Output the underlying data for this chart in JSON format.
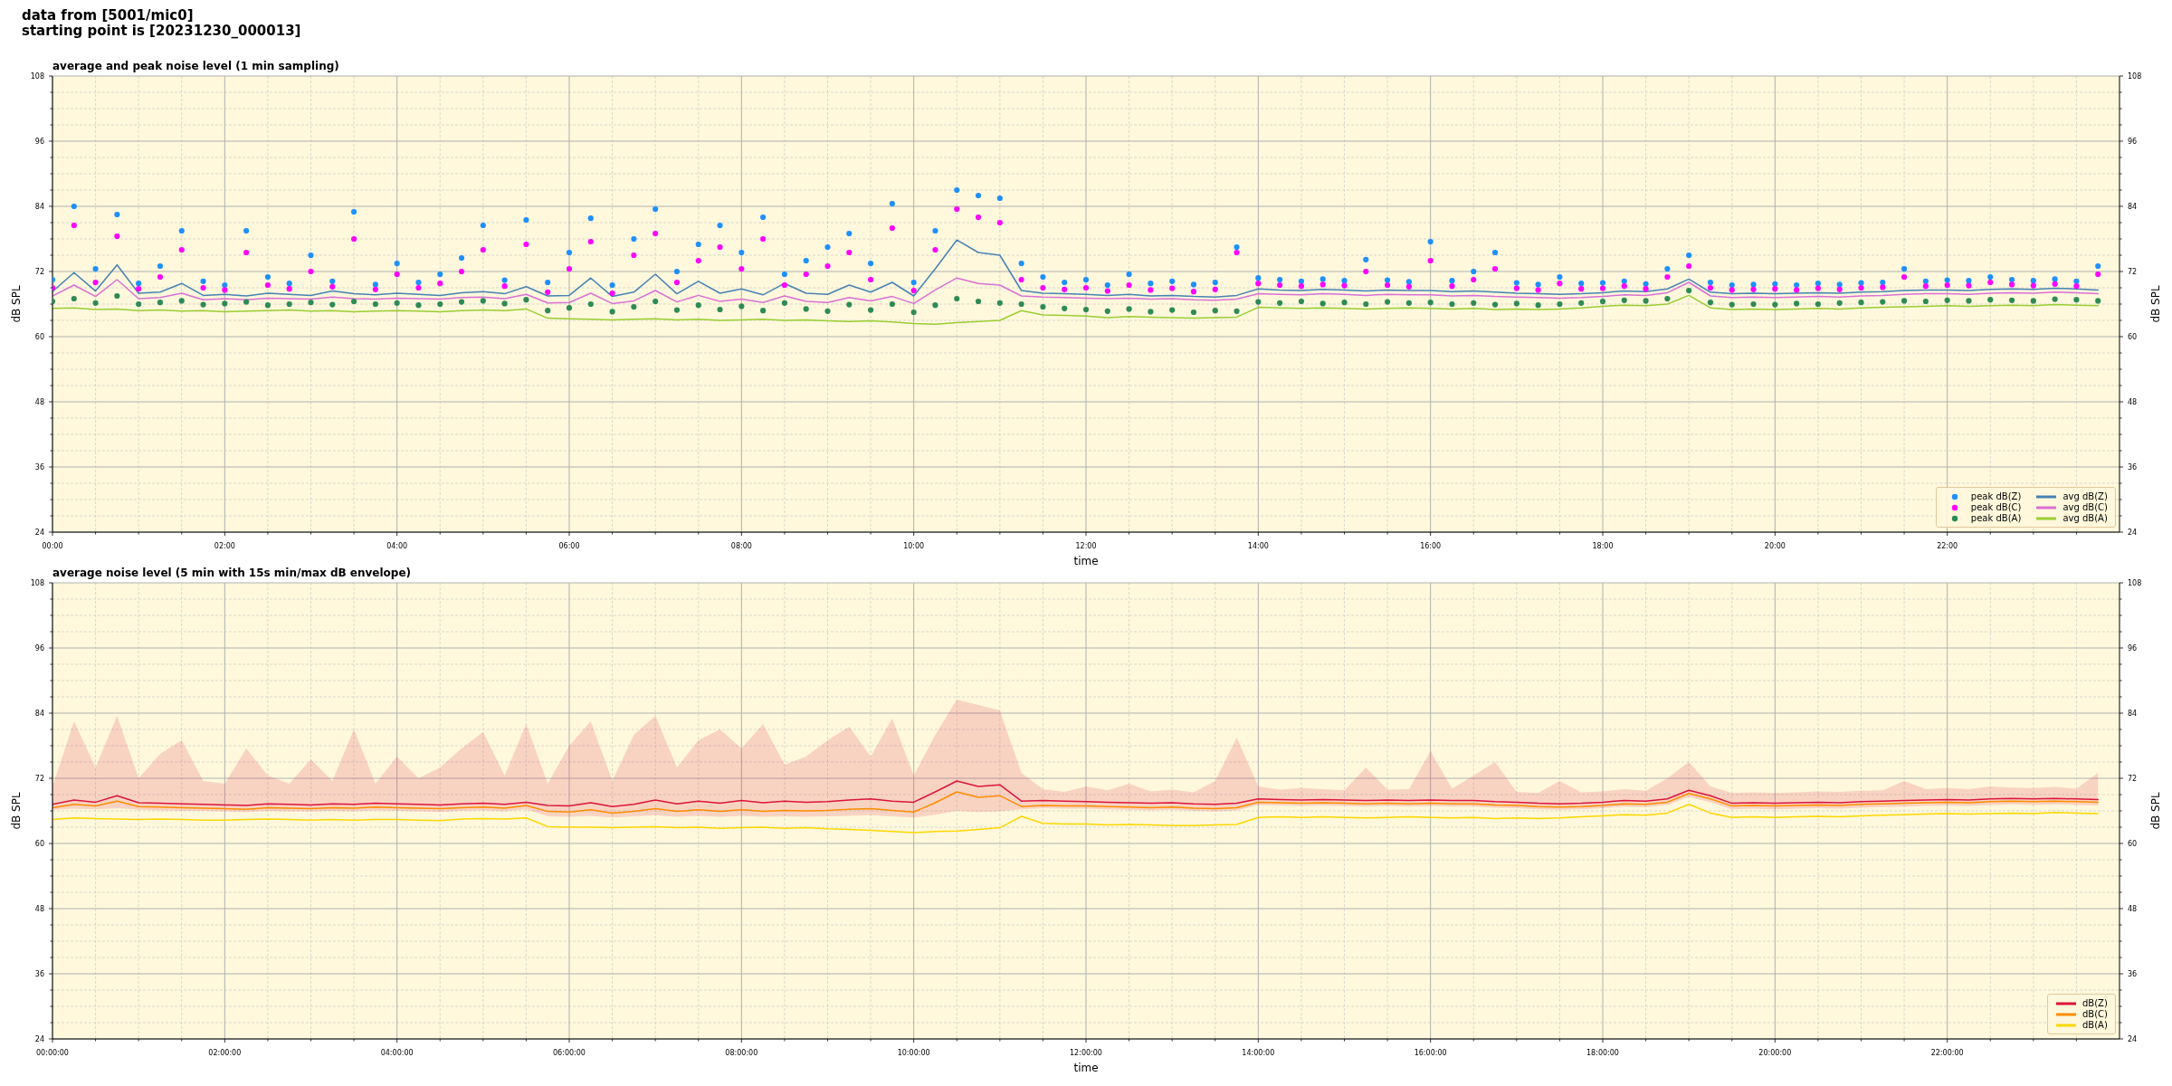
{
  "chart_data": [
    {
      "type": "line",
      "title": "average and peak noise level (1 min sampling)",
      "annotations": [
        "data from [5001/mic0]",
        "starting point is [20231230_000013]"
      ],
      "xlabel": "time",
      "ylabel": "dB SPL",
      "y2label": "dB SPL",
      "x": [
        0,
        0.25,
        0.5,
        0.75,
        1,
        1.25,
        1.5,
        1.75,
        2,
        2.25,
        2.5,
        2.75,
        3,
        3.25,
        3.5,
        3.75,
        4,
        4.25,
        4.5,
        4.75,
        5,
        5.25,
        5.5,
        5.75,
        6,
        6.25,
        6.5,
        6.75,
        7,
        7.25,
        7.5,
        7.75,
        8,
        8.25,
        8.5,
        8.75,
        9,
        9.25,
        9.5,
        9.75,
        10,
        10.25,
        10.5,
        10.75,
        11,
        11.25,
        11.5,
        11.75,
        12,
        12.25,
        12.5,
        12.75,
        13,
        13.25,
        13.5,
        13.75,
        14,
        14.25,
        14.5,
        14.75,
        15,
        15.25,
        15.5,
        15.75,
        16,
        16.25,
        16.5,
        16.75,
        17,
        17.25,
        17.5,
        17.75,
        18,
        18.25,
        18.5,
        18.75,
        19,
        19.25,
        19.5,
        19.75,
        20,
        20.25,
        20.5,
        20.75,
        21,
        21.25,
        21.5,
        21.75,
        22,
        22.25,
        22.5,
        22.75,
        23,
        23.25,
        23.5,
        23.75
      ],
      "xlim": [
        0,
        24
      ],
      "xticks": [
        {
          "value": 0,
          "label": "00:00"
        },
        {
          "value": 0.5,
          "label": null
        },
        {
          "value": 1,
          "label": null
        },
        {
          "value": 1.5,
          "label": null
        },
        {
          "value": 2,
          "label": "02:00"
        },
        {
          "value": 2.5,
          "label": null
        },
        {
          "value": 3,
          "label": null
        },
        {
          "value": 3.5,
          "label": null
        },
        {
          "value": 4,
          "label": "04:00"
        },
        {
          "value": 4.5,
          "label": null
        },
        {
          "value": 5,
          "label": null
        },
        {
          "value": 5.5,
          "label": null
        },
        {
          "value": 6,
          "label": "06:00"
        },
        {
          "value": 6.5,
          "label": null
        },
        {
          "value": 7,
          "label": null
        },
        {
          "value": 7.5,
          "label": null
        },
        {
          "value": 8,
          "label": "08:00"
        },
        {
          "value": 8.5,
          "label": null
        },
        {
          "value": 9,
          "label": null
        },
        {
          "value": 9.5,
          "label": null
        },
        {
          "value": 10,
          "label": "10:00"
        },
        {
          "value": 10.5,
          "label": null
        },
        {
          "value": 11,
          "label": null
        },
        {
          "value": 11.5,
          "label": null
        },
        {
          "value": 12,
          "label": "12:00"
        },
        {
          "value": 12.5,
          "label": null
        },
        {
          "value": 13,
          "label": null
        },
        {
          "value": 13.5,
          "label": null
        },
        {
          "value": 14,
          "label": "14:00"
        },
        {
          "value": 14.5,
          "label": null
        },
        {
          "value": 15,
          "label": null
        },
        {
          "value": 15.5,
          "label": null
        },
        {
          "value": 16,
          "label": "16:00"
        },
        {
          "value": 16.5,
          "label": null
        },
        {
          "value": 17,
          "label": null
        },
        {
          "value": 17.5,
          "label": null
        },
        {
          "value": 18,
          "label": "18:00"
        },
        {
          "value": 18.5,
          "label": null
        },
        {
          "value": 19,
          "label": null
        },
        {
          "value": 19.5,
          "label": null
        },
        {
          "value": 20,
          "label": "20:00"
        },
        {
          "value": 20.5,
          "label": null
        },
        {
          "value": 21,
          "label": null
        },
        {
          "value": 21.5,
          "label": null
        },
        {
          "value": 22,
          "label": "22:00"
        },
        {
          "value": 22.5,
          "label": null
        },
        {
          "value": 23,
          "label": null
        },
        {
          "value": 23.5,
          "label": null
        }
      ],
      "ylim": [
        24,
        108
      ],
      "yticks": [
        24,
        {
          "value": 27,
          "label": null
        },
        {
          "value": 30,
          "label": null
        },
        {
          "value": 33,
          "label": null
        },
        36,
        {
          "value": 39,
          "label": null
        },
        {
          "value": 42,
          "label": null
        },
        {
          "value": 45,
          "label": null
        },
        48,
        {
          "value": 51,
          "label": null
        },
        {
          "value": 54,
          "label": null
        },
        {
          "value": 57,
          "label": null
        },
        60,
        {
          "value": 63,
          "label": null
        },
        {
          "value": 66,
          "label": null
        },
        {
          "value": 69,
          "label": null
        },
        72,
        {
          "value": 75,
          "label": null
        },
        {
          "value": 78,
          "label": null
        },
        {
          "value": 81,
          "label": null
        },
        84,
        {
          "value": 87,
          "label": null
        },
        {
          "value": 90,
          "label": null
        },
        {
          "value": 93,
          "label": null
        },
        96,
        {
          "value": 99,
          "label": null
        },
        {
          "value": 102,
          "label": null
        },
        {
          "value": 105,
          "label": null
        },
        108
      ],
      "y2lim": [
        24,
        108
      ],
      "y2ticks": [
        24,
        {
          "value": 27,
          "label": null
        },
        {
          "value": 30,
          "label": null
        },
        {
          "value": 33,
          "label": null
        },
        36,
        {
          "value": 39,
          "label": null
        },
        {
          "value": 42,
          "label": null
        },
        {
          "value": 45,
          "label": null
        },
        48,
        {
          "value": 51,
          "label": null
        },
        {
          "value": 54,
          "label": null
        },
        {
          "value": 57,
          "label": null
        },
        60,
        {
          "value": 63,
          "label": null
        },
        {
          "value": 66,
          "label": null
        },
        {
          "value": 69,
          "label": null
        },
        72,
        {
          "value": 75,
          "label": null
        },
        {
          "value": 78,
          "label": null
        },
        {
          "value": 81,
          "label": null
        },
        84,
        {
          "value": 87,
          "label": null
        },
        {
          "value": 90,
          "label": null
        },
        {
          "value": 93,
          "label": null
        },
        96,
        {
          "value": 99,
          "label": null
        },
        {
          "value": 102,
          "label": null
        },
        {
          "value": 105,
          "label": null
        },
        108
      ],
      "grid": true,
      "legend": "bottom right",
      "series": [
        {
          "name": "peak dB(Z)",
          "type": "scatter",
          "marker": "circle",
          "color": "#1e90ff",
          "values": [
            70.5,
            84.0,
            72.5,
            82.5,
            69.8,
            73.0,
            79.5,
            70.2,
            69.5,
            79.5,
            71.0,
            69.8,
            75.0,
            70.2,
            83.0,
            69.6,
            73.5,
            70.0,
            71.5,
            74.5,
            80.5,
            70.4,
            81.5,
            70.0,
            75.5,
            81.8,
            69.5,
            78.0,
            83.5,
            72.0,
            77.0,
            80.5,
            75.5,
            82.0,
            71.5,
            74.0,
            76.5,
            79.0,
            73.5,
            84.5,
            70.0,
            79.5,
            87.0,
            86.0,
            85.5,
            73.5,
            71.0,
            70.0,
            70.5,
            69.5,
            71.5,
            69.8,
            70.2,
            69.6,
            70.0,
            76.5,
            70.8,
            70.5,
            70.2,
            70.6,
            70.3,
            74.2,
            70.4,
            70.1,
            77.5,
            70.3,
            72.0,
            75.5,
            69.9,
            69.6,
            71.0,
            69.8,
            69.9,
            70.2,
            69.7,
            72.5,
            75.0,
            70.0,
            69.5,
            69.6,
            69.7,
            69.5,
            69.8,
            69.6,
            69.9,
            70.0,
            72.5,
            70.2,
            70.4,
            70.3,
            71.0,
            70.5,
            70.3,
            70.6,
            70.2,
            73.0
          ]
        },
        {
          "name": "peak dB(C)",
          "type": "scatter",
          "marker": "circle",
          "color": "#ff00ff",
          "values": [
            69.0,
            80.5,
            70.0,
            78.5,
            68.8,
            71.0,
            76.0,
            69.0,
            68.6,
            75.5,
            69.5,
            68.8,
            72.0,
            69.2,
            78.0,
            68.7,
            71.5,
            69.0,
            69.8,
            72.0,
            76.0,
            69.3,
            77.0,
            68.2,
            72.5,
            77.5,
            68.0,
            75.0,
            79.0,
            70.0,
            74.0,
            76.5,
            72.5,
            78.0,
            69.5,
            71.5,
            73.0,
            75.5,
            70.5,
            80.0,
            68.5,
            76.0,
            83.5,
            82.0,
            81.0,
            70.5,
            69.0,
            68.7,
            69.0,
            68.4,
            69.5,
            68.6,
            68.9,
            68.3,
            68.7,
            75.5,
            69.8,
            69.5,
            69.3,
            69.6,
            69.4,
            72.0,
            69.5,
            69.2,
            74.0,
            69.3,
            70.5,
            72.5,
            68.9,
            68.6,
            69.8,
            68.8,
            68.9,
            69.3,
            68.8,
            71.0,
            73.0,
            69.0,
            68.6,
            68.7,
            68.8,
            68.6,
            68.9,
            68.7,
            69.0,
            69.1,
            71.0,
            69.3,
            69.5,
            69.4,
            70.0,
            69.6,
            69.4,
            69.7,
            69.3,
            71.5
          ]
        },
        {
          "name": "peak dB(A)",
          "type": "scatter",
          "marker": "circle",
          "color": "#2e8b57",
          "values": [
            66.5,
            67.0,
            66.2,
            67.5,
            66.0,
            66.3,
            66.6,
            65.9,
            66.1,
            66.4,
            65.8,
            66.0,
            66.3,
            65.9,
            66.5,
            66.0,
            66.2,
            65.8,
            66.0,
            66.4,
            66.6,
            66.1,
            66.8,
            64.8,
            65.3,
            66.0,
            64.6,
            65.5,
            66.5,
            64.9,
            65.8,
            65.0,
            65.6,
            64.8,
            66.2,
            65.1,
            64.7,
            65.9,
            64.9,
            66.0,
            64.5,
            65.8,
            67.0,
            66.5,
            66.2,
            66.0,
            65.5,
            65.2,
            65.0,
            64.7,
            65.1,
            64.6,
            64.9,
            64.5,
            64.8,
            64.7,
            66.4,
            66.2,
            66.5,
            66.1,
            66.3,
            66.0,
            66.4,
            66.2,
            66.3,
            66.0,
            66.2,
            65.9,
            66.1,
            65.8,
            66.0,
            66.2,
            66.5,
            66.7,
            66.6,
            67.0,
            68.5,
            66.3,
            65.9,
            66.0,
            65.9,
            66.1,
            66.0,
            66.2,
            66.3,
            66.4,
            66.6,
            66.5,
            66.7,
            66.6,
            66.8,
            66.7,
            66.6,
            66.9,
            66.8,
            66.6
          ]
        },
        {
          "name": "avg dB(Z)",
          "color": "#4682b4",
          "values": [
            68.3,
            71.8,
            68.4,
            73.2,
            68.0,
            68.2,
            69.8,
            67.6,
            67.8,
            67.5,
            68.0,
            67.8,
            67.6,
            68.4,
            67.9,
            67.7,
            68.0,
            67.8,
            67.6,
            68.1,
            68.3,
            67.9,
            69.2,
            67.5,
            67.6,
            70.8,
            67.4,
            68.2,
            71.5,
            67.9,
            70.2,
            68.0,
            68.8,
            67.7,
            69.8,
            68.0,
            67.8,
            69.5,
            68.2,
            70.0,
            67.5,
            72.5,
            77.8,
            75.5,
            75.0,
            68.5,
            68.0,
            67.9,
            67.8,
            67.6,
            67.8,
            67.5,
            67.6,
            67.4,
            67.3,
            67.6,
            68.8,
            68.6,
            68.5,
            68.7,
            68.6,
            68.4,
            68.6,
            68.5,
            68.5,
            68.3,
            68.4,
            68.2,
            68.0,
            67.9,
            67.8,
            67.9,
            68.1,
            68.4,
            68.3,
            68.8,
            70.6,
            68.2,
            67.9,
            68.0,
            67.9,
            68.0,
            68.1,
            68.0,
            68.2,
            68.3,
            68.5,
            68.6,
            68.6,
            68.5,
            68.7,
            68.8,
            68.7,
            68.9,
            68.8,
            68.6
          ]
        },
        {
          "name": "avg dB(C)",
          "color": "#da70d6",
          "values": [
            67.5,
            69.5,
            67.4,
            70.5,
            67.0,
            67.2,
            68.0,
            66.8,
            67.0,
            66.8,
            67.1,
            67.0,
            66.9,
            67.3,
            67.0,
            66.9,
            67.1,
            67.0,
            66.9,
            67.2,
            67.3,
            67.0,
            67.8,
            66.2,
            66.3,
            68.0,
            66.1,
            66.6,
            68.5,
            66.4,
            67.6,
            66.5,
            66.9,
            66.3,
            67.5,
            66.5,
            66.3,
            67.2,
            66.6,
            67.4,
            66.1,
            68.6,
            70.8,
            69.8,
            69.5,
            67.5,
            67.3,
            67.2,
            67.1,
            67.0,
            67.1,
            66.9,
            67.0,
            66.8,
            66.7,
            66.9,
            67.9,
            67.8,
            67.7,
            67.9,
            67.8,
            67.6,
            67.8,
            67.7,
            67.7,
            67.5,
            67.6,
            67.4,
            67.3,
            67.2,
            67.1,
            67.2,
            67.4,
            67.7,
            67.6,
            68.1,
            70.0,
            67.5,
            67.2,
            67.3,
            67.2,
            67.3,
            67.4,
            67.3,
            67.5,
            67.6,
            67.8,
            67.9,
            67.9,
            67.8,
            68.0,
            68.1,
            68.0,
            68.2,
            68.1,
            67.9
          ]
        },
        {
          "name": "avg dB(A)",
          "color": "#9acd32",
          "values": [
            65.2,
            65.3,
            65.0,
            65.1,
            64.8,
            64.9,
            64.7,
            64.8,
            64.6,
            64.7,
            64.8,
            64.9,
            64.7,
            64.8,
            64.6,
            64.7,
            64.8,
            64.7,
            64.6,
            64.8,
            64.9,
            64.8,
            65.1,
            63.4,
            63.3,
            63.2,
            63.1,
            63.2,
            63.3,
            63.1,
            63.2,
            63.0,
            63.1,
            63.2,
            63.0,
            63.1,
            62.9,
            62.8,
            62.9,
            62.7,
            62.4,
            62.3,
            62.6,
            62.8,
            63.0,
            64.8,
            64.0,
            63.9,
            63.8,
            63.5,
            63.7,
            63.6,
            63.5,
            63.4,
            63.5,
            63.6,
            65.4,
            65.3,
            65.2,
            65.3,
            65.2,
            65.1,
            65.2,
            65.3,
            65.2,
            65.1,
            65.2,
            65.0,
            65.1,
            65.0,
            65.1,
            65.3,
            65.6,
            65.8,
            65.7,
            66.0,
            67.6,
            65.3,
            65.0,
            65.1,
            65.0,
            65.1,
            65.2,
            65.1,
            65.3,
            65.4,
            65.5,
            65.6,
            65.7,
            65.6,
            65.7,
            65.8,
            65.7,
            65.9,
            65.8,
            65.7
          ]
        }
      ]
    },
    {
      "type": "line",
      "title": "average noise level (5 min with 15s min/max dB envelope)",
      "xlabel": "time",
      "ylabel": "dB SPL",
      "y2label": "dB SPL",
      "x": [
        0,
        0.25,
        0.5,
        0.75,
        1,
        1.25,
        1.5,
        1.75,
        2,
        2.25,
        2.5,
        2.75,
        3,
        3.25,
        3.5,
        3.75,
        4,
        4.25,
        4.5,
        4.75,
        5,
        5.25,
        5.5,
        5.75,
        6,
        6.25,
        6.5,
        6.75,
        7,
        7.25,
        7.5,
        7.75,
        8,
        8.25,
        8.5,
        8.75,
        9,
        9.25,
        9.5,
        9.75,
        10,
        10.25,
        10.5,
        10.75,
        11,
        11.25,
        11.5,
        11.75,
        12,
        12.25,
        12.5,
        12.75,
        13,
        13.25,
        13.5,
        13.75,
        14,
        14.25,
        14.5,
        14.75,
        15,
        15.25,
        15.5,
        15.75,
        16,
        16.25,
        16.5,
        16.75,
        17,
        17.25,
        17.5,
        17.75,
        18,
        18.25,
        18.5,
        18.75,
        19,
        19.25,
        19.5,
        19.75,
        20,
        20.25,
        20.5,
        20.75,
        21,
        21.25,
        21.5,
        21.75,
        22,
        22.25,
        22.5,
        22.75,
        23,
        23.25,
        23.5,
        23.75
      ],
      "xlim": [
        0,
        24
      ],
      "xticks": [
        {
          "value": 0,
          "label": "00:00:00"
        },
        {
          "value": 0.5,
          "label": null
        },
        {
          "value": 1,
          "label": null
        },
        {
          "value": 1.5,
          "label": null
        },
        {
          "value": 2,
          "label": "02:00:00"
        },
        {
          "value": 2.5,
          "label": null
        },
        {
          "value": 3,
          "label": null
        },
        {
          "value": 3.5,
          "label": null
        },
        {
          "value": 4,
          "label": "04:00:00"
        },
        {
          "value": 4.5,
          "label": null
        },
        {
          "value": 5,
          "label": null
        },
        {
          "value": 5.5,
          "label": null
        },
        {
          "value": 6,
          "label": "06:00:00"
        },
        {
          "value": 6.5,
          "label": null
        },
        {
          "value": 7,
          "label": null
        },
        {
          "value": 7.5,
          "label": null
        },
        {
          "value": 8,
          "label": "08:00:00"
        },
        {
          "value": 8.5,
          "label": null
        },
        {
          "value": 9,
          "label": null
        },
        {
          "value": 9.5,
          "label": null
        },
        {
          "value": 10,
          "label": "10:00:00"
        },
        {
          "value": 10.5,
          "label": null
        },
        {
          "value": 11,
          "label": null
        },
        {
          "value": 11.5,
          "label": null
        },
        {
          "value": 12,
          "label": "12:00:00"
        },
        {
          "value": 12.5,
          "label": null
        },
        {
          "value": 13,
          "label": null
        },
        {
          "value": 13.5,
          "label": null
        },
        {
          "value": 14,
          "label": "14:00:00"
        },
        {
          "value": 14.5,
          "label": null
        },
        {
          "value": 15,
          "label": null
        },
        {
          "value": 15.5,
          "label": null
        },
        {
          "value": 16,
          "label": "16:00:00"
        },
        {
          "value": 16.5,
          "label": null
        },
        {
          "value": 17,
          "label": null
        },
        {
          "value": 17.5,
          "label": null
        },
        {
          "value": 18,
          "label": "18:00:00"
        },
        {
          "value": 18.5,
          "label": null
        },
        {
          "value": 19,
          "label": null
        },
        {
          "value": 19.5,
          "label": null
        },
        {
          "value": 20,
          "label": "20:00:00"
        },
        {
          "value": 20.5,
          "label": null
        },
        {
          "value": 21,
          "label": null
        },
        {
          "value": 21.5,
          "label": null
        },
        {
          "value": 22,
          "label": "22:00:00"
        },
        {
          "value": 22.5,
          "label": null
        },
        {
          "value": 23,
          "label": null
        },
        {
          "value": 23.5,
          "label": null
        }
      ],
      "ylim": [
        24,
        108
      ],
      "yticks": [
        24,
        {
          "value": 27,
          "label": null
        },
        {
          "value": 30,
          "label": null
        },
        {
          "value": 33,
          "label": null
        },
        36,
        {
          "value": 39,
          "label": null
        },
        {
          "value": 42,
          "label": null
        },
        {
          "value": 45,
          "label": null
        },
        48,
        {
          "value": 51,
          "label": null
        },
        {
          "value": 54,
          "label": null
        },
        {
          "value": 57,
          "label": null
        },
        60,
        {
          "value": 63,
          "label": null
        },
        {
          "value": 66,
          "label": null
        },
        {
          "value": 69,
          "label": null
        },
        72,
        {
          "value": 75,
          "label": null
        },
        {
          "value": 78,
          "label": null
        },
        {
          "value": 81,
          "label": null
        },
        84,
        {
          "value": 87,
          "label": null
        },
        {
          "value": 90,
          "label": null
        },
        {
          "value": 93,
          "label": null
        },
        96,
        {
          "value": 99,
          "label": null
        },
        {
          "value": 102,
          "label": null
        },
        {
          "value": 105,
          "label": null
        },
        108
      ],
      "y2lim": [
        24,
        108
      ],
      "y2ticks": [
        24,
        {
          "value": 27,
          "label": null
        },
        {
          "value": 30,
          "label": null
        },
        {
          "value": 33,
          "label": null
        },
        36,
        {
          "value": 39,
          "label": null
        },
        {
          "value": 42,
          "label": null
        },
        {
          "value": 45,
          "label": null
        },
        48,
        {
          "value": 51,
          "label": null
        },
        {
          "value": 54,
          "label": null
        },
        {
          "value": 57,
          "label": null
        },
        60,
        {
          "value": 63,
          "label": null
        },
        {
          "value": 66,
          "label": null
        },
        {
          "value": 69,
          "label": null
        },
        72,
        {
          "value": 75,
          "label": null
        },
        {
          "value": 78,
          "label": null
        },
        {
          "value": 81,
          "label": null
        },
        84,
        {
          "value": 87,
          "label": null
        },
        {
          "value": 90,
          "label": null
        },
        {
          "value": 93,
          "label": null
        },
        96,
        {
          "value": 99,
          "label": null
        },
        {
          "value": 102,
          "label": null
        },
        {
          "value": 105,
          "label": null
        },
        108
      ],
      "grid": true,
      "legend": "bottom right",
      "series": [
        {
          "name": "dB(Z)",
          "color": "#dc143c",
          "values": [
            67.2,
            68.0,
            67.6,
            68.8,
            67.5,
            67.4,
            67.3,
            67.2,
            67.1,
            67.0,
            67.3,
            67.2,
            67.1,
            67.3,
            67.2,
            67.4,
            67.3,
            67.2,
            67.1,
            67.3,
            67.4,
            67.2,
            67.6,
            67.0,
            66.9,
            67.5,
            66.8,
            67.2,
            68.0,
            67.3,
            67.8,
            67.4,
            67.9,
            67.5,
            67.8,
            67.6,
            67.7,
            68.0,
            68.2,
            67.8,
            67.6,
            69.5,
            71.5,
            70.5,
            70.8,
            67.8,
            67.9,
            67.8,
            67.7,
            67.6,
            67.5,
            67.4,
            67.5,
            67.3,
            67.2,
            67.4,
            68.2,
            68.1,
            68.0,
            68.1,
            68.0,
            67.9,
            68.0,
            67.9,
            68.0,
            67.9,
            67.9,
            67.7,
            67.6,
            67.4,
            67.3,
            67.4,
            67.6,
            67.9,
            67.8,
            68.2,
            69.8,
            68.8,
            67.4,
            67.5,
            67.4,
            67.5,
            67.6,
            67.5,
            67.7,
            67.8,
            67.9,
            68.0,
            68.1,
            68.0,
            68.2,
            68.3,
            68.2,
            68.3,
            68.2,
            68.1
          ],
          "lower": [
            66.2,
            66.4,
            66.3,
            66.5,
            66.2,
            66.1,
            66.0,
            66.0,
            65.9,
            65.8,
            66.0,
            65.9,
            65.9,
            66.0,
            65.9,
            66.1,
            66.0,
            65.9,
            65.8,
            66.0,
            66.1,
            65.9,
            66.3,
            65.0,
            64.9,
            65.1,
            64.8,
            65.0,
            65.2,
            64.9,
            65.1,
            64.9,
            65.1,
            64.9,
            65.0,
            64.9,
            65.0,
            65.1,
            65.2,
            65.0,
            64.8,
            65.3,
            66.0,
            65.8,
            65.9,
            66.3,
            66.5,
            66.4,
            66.4,
            66.3,
            66.2,
            66.1,
            66.2,
            66.0,
            65.9,
            66.1,
            67.1,
            67.0,
            66.9,
            67.0,
            66.9,
            66.8,
            66.9,
            66.8,
            66.9,
            66.8,
            66.8,
            66.6,
            66.5,
            66.3,
            66.2,
            66.3,
            66.5,
            66.8,
            66.7,
            67.1,
            68.6,
            67.6,
            66.3,
            66.4,
            66.3,
            66.4,
            66.5,
            66.4,
            66.6,
            66.7,
            66.8,
            66.9,
            67.0,
            66.9,
            67.1,
            67.2,
            67.1,
            67.2,
            67.1,
            67.0
          ],
          "upper": [
            70.5,
            82.5,
            74.0,
            83.5,
            72.0,
            76.5,
            79.0,
            71.5,
            71.0,
            77.5,
            72.5,
            71.0,
            75.5,
            71.5,
            81.0,
            71.0,
            76.0,
            72.0,
            74.0,
            77.5,
            80.5,
            72.5,
            82.0,
            71.0,
            78.0,
            82.5,
            71.5,
            80.0,
            83.5,
            74.0,
            79.0,
            81.0,
            77.5,
            82.0,
            74.5,
            76.0,
            79.0,
            81.5,
            76.0,
            83.0,
            72.5,
            80.0,
            86.5,
            85.5,
            84.5,
            73.0,
            70.0,
            69.5,
            70.5,
            69.8,
            71.0,
            69.6,
            69.9,
            69.4,
            71.5,
            79.5,
            70.5,
            69.9,
            70.2,
            70.0,
            69.8,
            74.0,
            69.9,
            70.0,
            77.0,
            70.1,
            72.5,
            75.0,
            69.5,
            69.3,
            71.5,
            69.4,
            69.6,
            70.0,
            69.7,
            72.0,
            75.0,
            70.5,
            69.3,
            69.4,
            69.3,
            69.4,
            69.6,
            69.5,
            69.7,
            69.8,
            71.5,
            70.0,
            70.2,
            70.0,
            70.5,
            70.3,
            70.2,
            70.4,
            70.1,
            73.0
          ]
        },
        {
          "name": "dB(C)",
          "color": "#ff8c00",
          "values": [
            66.6,
            67.2,
            66.9,
            67.8,
            66.8,
            66.7,
            66.6,
            66.5,
            66.4,
            66.3,
            66.6,
            66.5,
            66.4,
            66.6,
            66.5,
            66.7,
            66.6,
            66.5,
            66.4,
            66.6,
            66.7,
            66.5,
            67.0,
            65.9,
            65.8,
            66.2,
            65.6,
            65.9,
            66.4,
            65.9,
            66.2,
            65.9,
            66.2,
            65.9,
            66.1,
            66.0,
            66.1,
            66.3,
            66.4,
            66.1,
            65.8,
            67.5,
            69.5,
            68.5,
            68.8,
            66.8,
            67.0,
            66.9,
            66.9,
            66.8,
            66.7,
            66.6,
            66.7,
            66.5,
            66.4,
            66.6,
            67.6,
            67.5,
            67.4,
            67.5,
            67.4,
            67.3,
            67.4,
            67.3,
            67.4,
            67.3,
            67.3,
            67.1,
            67.0,
            66.8,
            66.7,
            66.8,
            67.0,
            67.3,
            67.2,
            67.6,
            69.2,
            68.2,
            66.9,
            67.0,
            66.9,
            67.0,
            67.1,
            67.0,
            67.2,
            67.3,
            67.4,
            67.5,
            67.6,
            67.5,
            67.7,
            67.8,
            67.7,
            67.8,
            67.7,
            67.6
          ]
        },
        {
          "name": "dB(A)",
          "color": "#ffd700",
          "values": [
            64.4,
            64.7,
            64.6,
            64.5,
            64.4,
            64.5,
            64.4,
            64.3,
            64.3,
            64.4,
            64.5,
            64.4,
            64.3,
            64.4,
            64.3,
            64.4,
            64.4,
            64.3,
            64.2,
            64.5,
            64.6,
            64.5,
            64.7,
            63.1,
            63.0,
            63.0,
            62.9,
            63.0,
            63.1,
            62.9,
            63.0,
            62.8,
            62.9,
            63.0,
            62.8,
            62.9,
            62.7,
            62.6,
            62.4,
            62.2,
            62.0,
            62.2,
            62.3,
            62.6,
            62.9,
            65.0,
            63.7,
            63.6,
            63.6,
            63.4,
            63.5,
            63.4,
            63.3,
            63.3,
            63.4,
            63.5,
            64.8,
            64.9,
            64.8,
            64.9,
            64.8,
            64.7,
            64.8,
            64.9,
            64.8,
            64.7,
            64.8,
            64.6,
            64.7,
            64.6,
            64.7,
            64.9,
            65.1,
            65.3,
            65.2,
            65.6,
            67.2,
            65.6,
            64.8,
            64.9,
            64.8,
            64.9,
            65.0,
            64.9,
            65.1,
            65.2,
            65.3,
            65.4,
            65.5,
            65.4,
            65.5,
            65.6,
            65.5,
            65.7,
            65.6,
            65.5
          ]
        }
      ]
    }
  ]
}
